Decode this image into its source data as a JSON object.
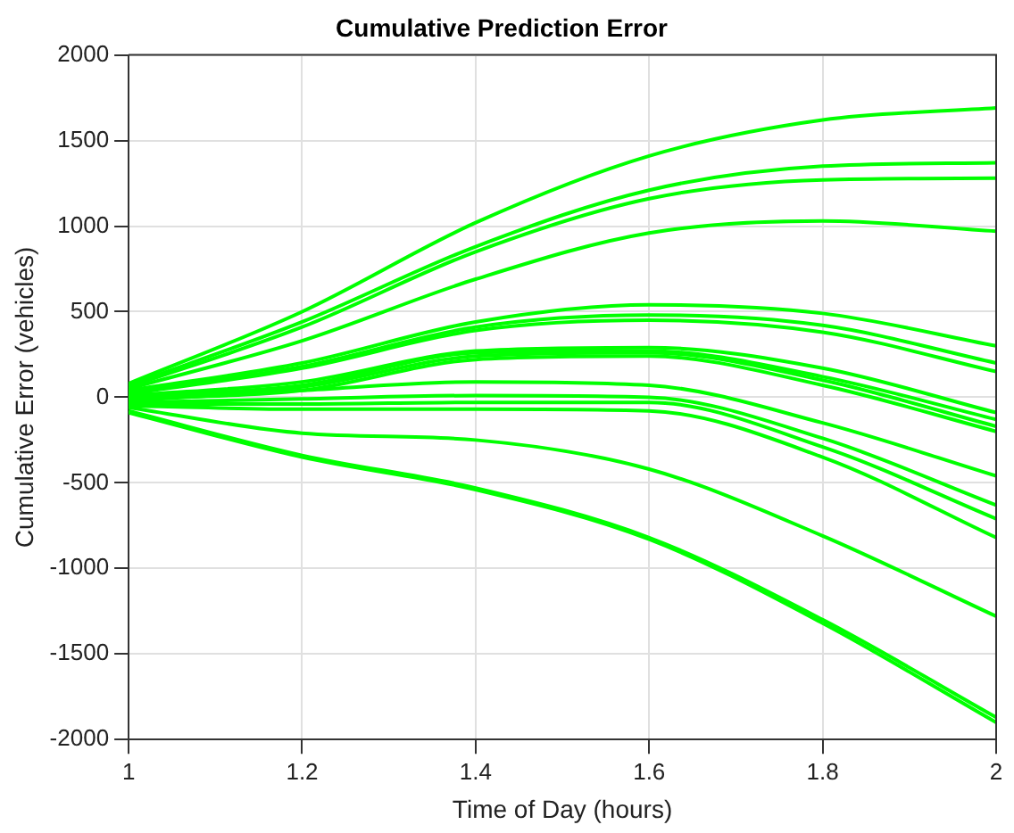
{
  "chart_data": {
    "type": "line",
    "title": "Cumulative Prediction Error",
    "xlabel": "Time of Day (hours)",
    "ylabel": "Cumulative Error (vehicles)",
    "x": [
      1,
      1.2,
      1.4,
      1.6,
      1.8,
      2
    ],
    "xlim": [
      1,
      2
    ],
    "xticks": [
      1,
      1.2,
      1.4,
      1.6,
      1.8,
      2
    ],
    "ylim": [
      -2000,
      2000
    ],
    "yticks": [
      -2000,
      -1500,
      -1000,
      -500,
      0,
      500,
      1000,
      1500,
      2000
    ],
    "grid": true,
    "legend": false,
    "marker": "none",
    "line_style": "solid",
    "series": [
      {
        "color": "#00ff00",
        "values": [
          80,
          500,
          1020,
          1410,
          1620,
          1690
        ]
      },
      {
        "color": "#00ff00",
        "values": [
          70,
          440,
          880,
          1210,
          1350,
          1370
        ]
      },
      {
        "color": "#00ff00",
        "values": [
          60,
          410,
          850,
          1160,
          1270,
          1280
        ]
      },
      {
        "color": "#00ff00",
        "values": [
          50,
          330,
          690,
          960,
          1030,
          970
        ]
      },
      {
        "color": "#00ff00",
        "values": [
          40,
          200,
          440,
          540,
          490,
          300
        ]
      },
      {
        "color": "#00ff00",
        "values": [
          30,
          180,
          410,
          480,
          420,
          200
        ]
      },
      {
        "color": "#00ff00",
        "values": [
          20,
          170,
          390,
          450,
          380,
          150
        ]
      },
      {
        "color": "#00ff00",
        "values": [
          10,
          90,
          270,
          290,
          170,
          -90
        ]
      },
      {
        "color": "#00ff00",
        "values": [
          0,
          70,
          260,
          270,
          120,
          -130
        ]
      },
      {
        "color": "#00ff00",
        "values": [
          0,
          60,
          240,
          260,
          100,
          -170
        ]
      },
      {
        "color": "#00ff00",
        "values": [
          -10,
          40,
          220,
          240,
          70,
          -200
        ]
      },
      {
        "color": "#00ff00",
        "values": [
          -20,
          40,
          90,
          70,
          -150,
          -460
        ]
      },
      {
        "color": "#00ff00",
        "values": [
          -30,
          -10,
          10,
          0,
          -240,
          -630
        ]
      },
      {
        "color": "#00ff00",
        "values": [
          -40,
          -40,
          -30,
          -30,
          -290,
          -710
        ]
      },
      {
        "color": "#00ff00",
        "values": [
          -50,
          -70,
          -70,
          -80,
          -350,
          -820
        ]
      },
      {
        "color": "#00ff00",
        "values": [
          -60,
          -210,
          -250,
          -420,
          -810,
          -1280
        ]
      },
      {
        "color": "#00ff00",
        "values": [
          -80,
          -340,
          -530,
          -820,
          -1300,
          -1870
        ]
      },
      {
        "color": "#00ff00",
        "values": [
          -90,
          -350,
          -540,
          -830,
          -1320,
          -1900
        ]
      }
    ]
  }
}
